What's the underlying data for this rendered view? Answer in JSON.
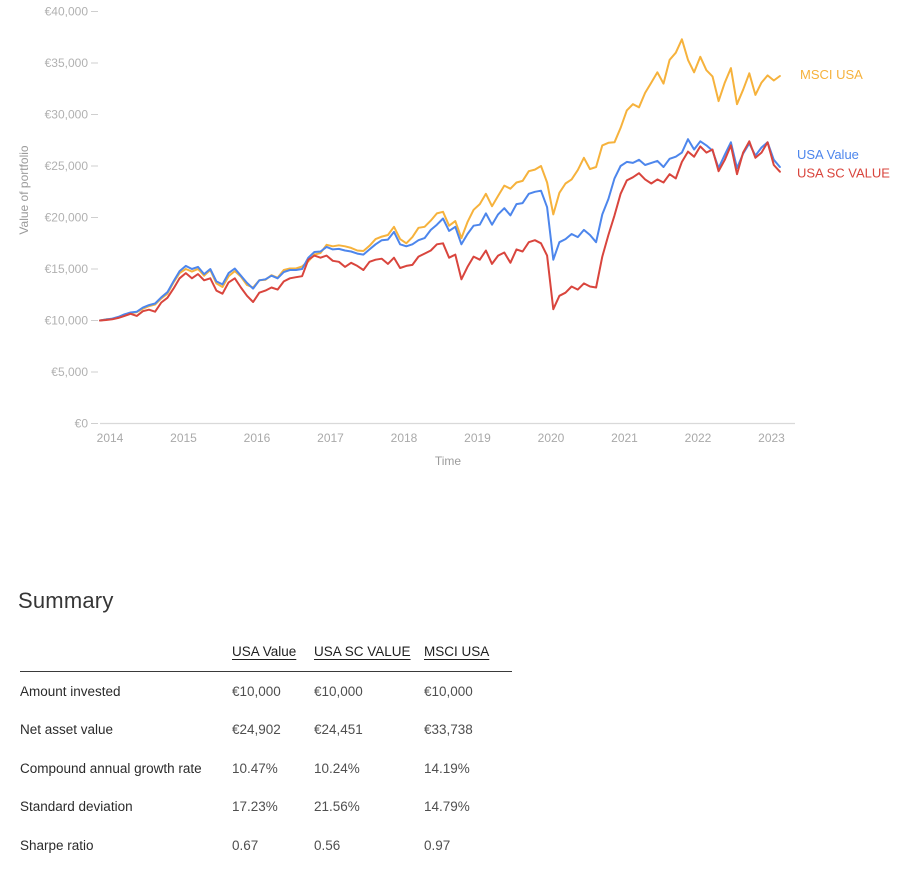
{
  "chart_data": {
    "type": "line",
    "title": "",
    "xlabel": "Time",
    "ylabel": "Value of portfolio",
    "x_start": "2014-01",
    "x_step_months": 1,
    "x_range": [
      2014,
      2023.33
    ],
    "ylim": [
      0,
      40000
    ],
    "grid": false,
    "legend_position": "line-end-labels",
    "x_ticks": [
      "2014",
      "2015",
      "2016",
      "2017",
      "2018",
      "2019",
      "2020",
      "2021",
      "2022",
      "2023"
    ],
    "y_ticks": [
      {
        "value": 0,
        "label": "€0"
      },
      {
        "value": 5000,
        "label": "€5,000"
      },
      {
        "value": 10000,
        "label": "€10,000"
      },
      {
        "value": 15000,
        "label": "€15,000"
      },
      {
        "value": 20000,
        "label": "€20,000"
      },
      {
        "value": 25000,
        "label": "€25,000"
      },
      {
        "value": 30000,
        "label": "€30,000"
      },
      {
        "value": 35000,
        "label": "€35,000"
      },
      {
        "value": 40000,
        "label": "€40,000"
      }
    ],
    "series": [
      {
        "name": "MSCI USA",
        "color": "#F6B23C",
        "values": [
          10000,
          10120,
          10150,
          10320,
          10560,
          10700,
          10820,
          11150,
          11400,
          11550,
          12150,
          12600,
          13700,
          14600,
          15000,
          14750,
          15000,
          14350,
          14900,
          13600,
          13250,
          14300,
          14800,
          14250,
          13450,
          13200,
          13900,
          13950,
          14400,
          14150,
          14900,
          15050,
          15050,
          15250,
          15750,
          16400,
          16550,
          17350,
          17200,
          17300,
          17200,
          17050,
          16800,
          16750,
          17250,
          17900,
          18150,
          18300,
          19100,
          17900,
          17500,
          18100,
          19000,
          19100,
          19700,
          20400,
          20550,
          19200,
          19650,
          18000,
          19550,
          20750,
          21300,
          22300,
          21100,
          22100,
          23100,
          22800,
          23400,
          23550,
          24500,
          24650,
          25000,
          23400,
          20300,
          22400,
          23300,
          23700,
          24600,
          25800,
          24700,
          24900,
          27000,
          27250,
          27300,
          28700,
          30400,
          31000,
          30700,
          32100,
          33100,
          34100,
          33000,
          35300,
          36000,
          37300,
          35300,
          34100,
          35600,
          34300,
          33700,
          31300,
          33100,
          34500,
          31000,
          32400,
          34000,
          31900,
          33100,
          33800,
          33300,
          33738
        ]
      },
      {
        "name": "USA Value",
        "color": "#4D86EC",
        "values": [
          10000,
          10100,
          10180,
          10350,
          10600,
          10780,
          10850,
          11250,
          11500,
          11650,
          12250,
          12750,
          13800,
          14800,
          15300,
          15000,
          15200,
          14500,
          15000,
          13800,
          13500,
          14600,
          15050,
          14350,
          13650,
          13100,
          13900,
          14000,
          14350,
          14100,
          14700,
          14900,
          14900,
          15000,
          16100,
          16650,
          16700,
          17150,
          16900,
          16950,
          16800,
          16700,
          16500,
          16400,
          16900,
          17400,
          17800,
          17850,
          18600,
          17400,
          17200,
          17400,
          17800,
          18000,
          18800,
          19300,
          19900,
          18700,
          19100,
          17400,
          18400,
          19200,
          19300,
          20400,
          19300,
          20300,
          20900,
          20200,
          21300,
          21400,
          22300,
          22500,
          22600,
          21000,
          15900,
          17600,
          17900,
          18400,
          18100,
          18800,
          18300,
          17600,
          20300,
          21800,
          23800,
          25000,
          25400,
          25300,
          25600,
          25100,
          25300,
          25500,
          24900,
          25700,
          25900,
          26300,
          27600,
          26600,
          27400,
          27000,
          26500,
          24800,
          26100,
          27300,
          24800,
          26200,
          27200,
          26000,
          26800,
          27300,
          25600,
          24902
        ]
      },
      {
        "name": "USA SC VALUE",
        "color": "#D9453D",
        "values": [
          10000,
          10050,
          10120,
          10250,
          10450,
          10650,
          10450,
          10900,
          11050,
          10850,
          11750,
          12200,
          13100,
          14100,
          14600,
          14100,
          14500,
          13900,
          14100,
          12900,
          12600,
          13700,
          14100,
          13200,
          12400,
          11800,
          12700,
          12900,
          13200,
          13000,
          13800,
          14100,
          14200,
          14300,
          15900,
          16300,
          16100,
          16300,
          15800,
          15700,
          15200,
          15600,
          15300,
          14900,
          15700,
          15900,
          16000,
          15500,
          16100,
          15100,
          15300,
          15400,
          16200,
          16500,
          16800,
          17400,
          17500,
          16100,
          16400,
          14000,
          15200,
          16200,
          15900,
          16800,
          15500,
          16300,
          16600,
          15600,
          16900,
          16700,
          17600,
          17800,
          17500,
          16300,
          11100,
          12400,
          12700,
          13300,
          13000,
          13600,
          13300,
          13200,
          16200,
          18300,
          20200,
          22300,
          23600,
          23900,
          24300,
          23700,
          23300,
          23700,
          23400,
          24200,
          23800,
          25400,
          26400,
          25900,
          26900,
          26300,
          26600,
          24500,
          25600,
          27000,
          24200,
          26300,
          27400,
          25800,
          26300,
          27300,
          25100,
          24451
        ]
      }
    ]
  },
  "summary": {
    "heading": "Summary",
    "table": {
      "columns": [
        "USA Value",
        "USA SC VALUE",
        "MSCI USA"
      ],
      "rows": [
        {
          "label": "Amount invested",
          "values": [
            "€10,000",
            "€10,000",
            "€10,000"
          ]
        },
        {
          "label": "Net asset value",
          "values": [
            "€24,902",
            "€24,451",
            "€33,738"
          ]
        },
        {
          "label": "Compound annual growth rate",
          "values": [
            "10.47%",
            "10.24%",
            "14.19%"
          ]
        },
        {
          "label": "Standard deviation",
          "values": [
            "17.23%",
            "21.56%",
            "14.79%"
          ]
        },
        {
          "label": "Sharpe ratio",
          "values": [
            "0.67",
            "0.56",
            "0.97"
          ]
        }
      ]
    }
  }
}
